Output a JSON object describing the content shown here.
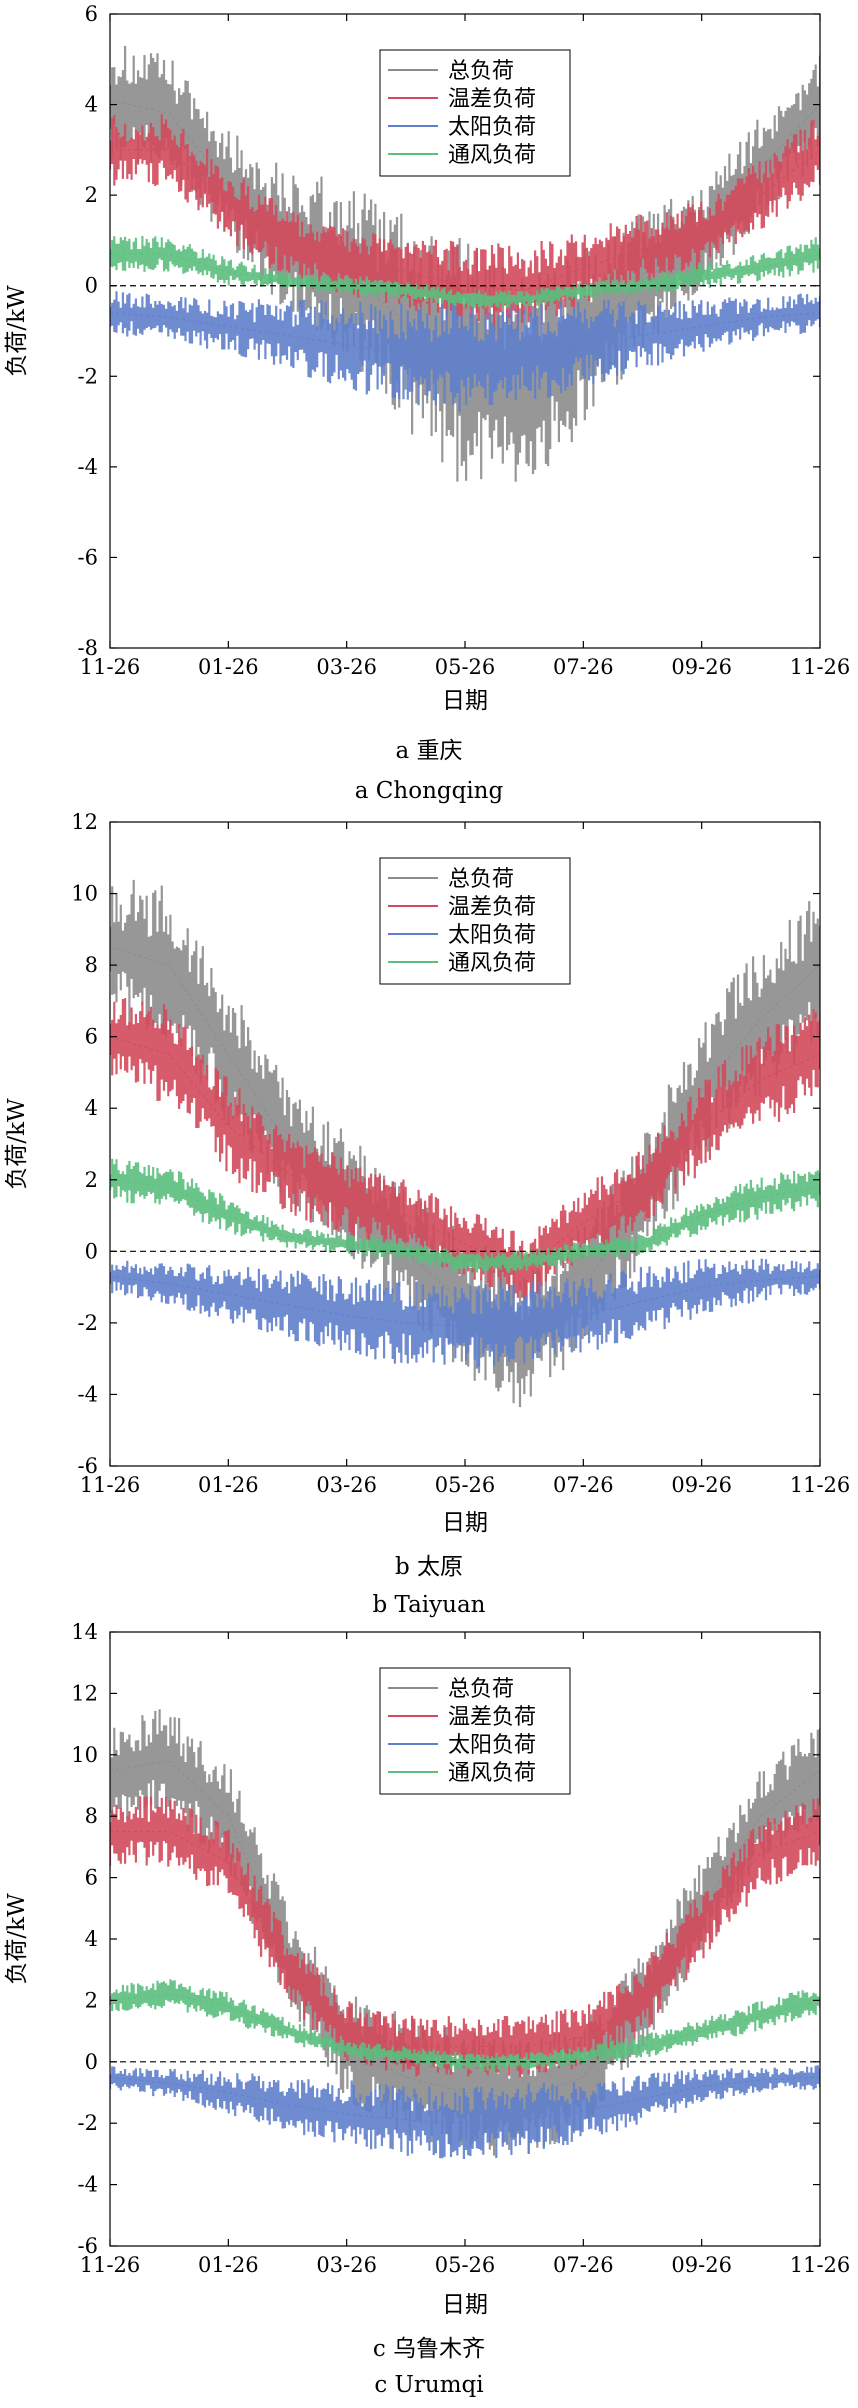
{
  "chart_data": [
    {
      "type": "line",
      "caption_cn": "a 重庆",
      "caption_en": "a Chongqing",
      "xlabel": "日期",
      "ylabel": "负荷/kW",
      "ylim": [
        -8,
        6
      ],
      "yticks": [
        6,
        4,
        2,
        0,
        -2,
        -4,
        -6,
        -8
      ],
      "xticks": [
        "11-26",
        "01-26",
        "03-26",
        "05-26",
        "07-26",
        "09-26",
        "11-26"
      ],
      "legend_position": "top-center",
      "month_index": [
        0,
        1,
        2,
        3,
        4,
        5,
        6,
        7,
        8,
        9,
        10,
        11,
        12
      ],
      "series": [
        {
          "name": "总负荷",
          "color": "#8c8c8c",
          "mid": [
            4.1,
            3.8,
            2.2,
            1.0,
            0.3,
            -0.8,
            -1.8,
            -2.2,
            -1.2,
            0.1,
            1.0,
            2.6,
            4.0
          ],
          "spread": [
            1.3,
            1.3,
            1.3,
            1.6,
            2.0,
            2.4,
            2.8,
            2.5,
            2.0,
            1.6,
            1.2,
            1.2,
            1.2
          ]
        },
        {
          "name": "温差负荷",
          "color": "#d24a5c",
          "mid": [
            3.0,
            3.0,
            1.8,
            0.9,
            0.5,
            0.3,
            0.0,
            -0.1,
            0.4,
            0.8,
            1.1,
            2.0,
            3.0
          ],
          "spread": [
            0.8,
            0.8,
            0.8,
            0.8,
            0.8,
            0.8,
            1.0,
            1.0,
            0.8,
            0.8,
            0.8,
            0.8,
            0.8
          ]
        },
        {
          "name": "太阳负荷",
          "color": "#5f7fcc",
          "mid": [
            -0.6,
            -0.7,
            -0.9,
            -1.1,
            -1.3,
            -1.5,
            -1.6,
            -1.5,
            -1.3,
            -1.1,
            -0.9,
            -0.7,
            -0.6
          ],
          "spread": [
            0.5,
            0.5,
            0.6,
            0.8,
            1.0,
            1.1,
            1.2,
            1.1,
            1.0,
            0.8,
            0.6,
            0.5,
            0.5
          ]
        },
        {
          "name": "通风负荷",
          "color": "#5bbf7e",
          "mid": [
            0.7,
            0.7,
            0.3,
            0.1,
            0.0,
            -0.1,
            -0.3,
            -0.3,
            -0.1,
            0.0,
            0.2,
            0.4,
            0.7
          ],
          "spread": [
            0.4,
            0.4,
            0.3,
            0.2,
            0.2,
            0.2,
            0.2,
            0.2,
            0.2,
            0.2,
            0.3,
            0.3,
            0.4
          ]
        }
      ]
    },
    {
      "type": "line",
      "caption_cn": "b 太原",
      "caption_en": "b Taiyuan",
      "xlabel": "日期",
      "ylabel": "负荷/kW",
      "ylim": [
        -6,
        12
      ],
      "yticks": [
        12,
        10,
        8,
        6,
        4,
        2,
        0,
        -2,
        -4,
        -6
      ],
      "xticks": [
        "11-26",
        "01-26",
        "03-26",
        "05-26",
        "07-26",
        "09-26",
        "11-26"
      ],
      "legend_position": "top-center",
      "month_index": [
        0,
        1,
        2,
        3,
        4,
        5,
        6,
        7,
        8,
        9,
        10,
        11,
        12
      ],
      "series": [
        {
          "name": "总负荷",
          "color": "#8c8c8c",
          "mid": [
            8.5,
            8.0,
            5.5,
            3.0,
            1.5,
            0.0,
            -1.5,
            -2.5,
            -1.0,
            1.5,
            4.5,
            6.5,
            8.0
          ],
          "spread": [
            2.2,
            2.2,
            2.0,
            1.8,
            1.8,
            1.8,
            2.0,
            2.0,
            1.8,
            1.8,
            2.0,
            2.2,
            2.2
          ]
        },
        {
          "name": "温差负荷",
          "color": "#d24a5c",
          "mid": [
            6.0,
            5.5,
            3.5,
            2.2,
            1.5,
            1.0,
            0.2,
            -0.5,
            0.8,
            1.8,
            3.5,
            4.8,
            5.5
          ],
          "spread": [
            1.4,
            1.4,
            1.4,
            1.2,
            1.1,
            1.0,
            1.0,
            1.0,
            1.0,
            1.1,
            1.3,
            1.4,
            1.4
          ]
        },
        {
          "name": "太阳负荷",
          "color": "#5f7fcc",
          "mid": [
            -0.7,
            -0.9,
            -1.2,
            -1.5,
            -1.8,
            -2.0,
            -2.1,
            -2.0,
            -1.8,
            -1.4,
            -1.0,
            -0.8,
            -0.7
          ],
          "spread": [
            0.5,
            0.6,
            0.8,
            1.0,
            1.1,
            1.2,
            1.2,
            1.2,
            1.1,
            1.0,
            0.8,
            0.6,
            0.5
          ]
        },
        {
          "name": "通风负荷",
          "color": "#5bbf7e",
          "mid": [
            2.0,
            1.8,
            1.0,
            0.4,
            0.2,
            0.0,
            -0.3,
            -0.3,
            0.0,
            0.2,
            1.0,
            1.5,
            1.8
          ],
          "spread": [
            0.6,
            0.6,
            0.5,
            0.3,
            0.3,
            0.3,
            0.3,
            0.3,
            0.3,
            0.3,
            0.5,
            0.6,
            0.6
          ]
        }
      ]
    },
    {
      "type": "line",
      "caption_cn": "c 乌鲁木齐",
      "caption_en": "c Urumqi",
      "xlabel": "日期",
      "ylabel": "负荷/kW",
      "ylim": [
        -6,
        14
      ],
      "yticks": [
        14,
        12,
        10,
        8,
        6,
        4,
        2,
        0,
        -2,
        -4,
        -6
      ],
      "xticks": [
        "11-26",
        "01-26",
        "03-26",
        "05-26",
        "07-26",
        "09-26",
        "11-26"
      ],
      "legend_position": "top-center",
      "month_index": [
        0,
        1,
        2,
        3,
        4,
        5,
        6,
        7,
        8,
        9,
        10,
        11,
        12
      ],
      "series": [
        {
          "name": "总负荷",
          "color": "#8c8c8c",
          "mid": [
            9.5,
            9.8,
            8.0,
            3.5,
            0.5,
            -0.5,
            -1.0,
            -1.2,
            -0.5,
            2.0,
            5.0,
            8.0,
            9.5
          ],
          "spread": [
            1.6,
            1.8,
            1.8,
            1.6,
            1.8,
            2.0,
            2.0,
            2.0,
            1.8,
            1.6,
            1.6,
            1.6,
            1.6
          ]
        },
        {
          "name": "温差负荷",
          "color": "#d24a5c",
          "mid": [
            7.5,
            7.5,
            6.5,
            3.0,
            1.0,
            0.5,
            0.5,
            0.5,
            0.8,
            2.0,
            4.5,
            6.8,
            7.5
          ],
          "spread": [
            1.2,
            1.2,
            1.2,
            1.2,
            1.0,
            1.0,
            1.0,
            1.0,
            1.0,
            1.2,
            1.2,
            1.2,
            1.2
          ]
        },
        {
          "name": "太阳负荷",
          "color": "#5f7fcc",
          "mid": [
            -0.5,
            -0.7,
            -1.0,
            -1.4,
            -1.7,
            -1.9,
            -2.0,
            -1.9,
            -1.6,
            -1.2,
            -0.8,
            -0.6,
            -0.5
          ],
          "spread": [
            0.4,
            0.5,
            0.7,
            0.9,
            1.1,
            1.2,
            1.2,
            1.2,
            1.0,
            0.8,
            0.6,
            0.4,
            0.4
          ]
        },
        {
          "name": "通风负荷",
          "color": "#5bbf7e",
          "mid": [
            2.0,
            2.2,
            1.8,
            1.0,
            0.4,
            0.2,
            0.0,
            0.0,
            0.2,
            0.5,
            1.0,
            1.5,
            2.0
          ],
          "spread": [
            0.5,
            0.5,
            0.5,
            0.4,
            0.3,
            0.3,
            0.3,
            0.3,
            0.3,
            0.4,
            0.4,
            0.5,
            0.5
          ]
        }
      ]
    }
  ]
}
